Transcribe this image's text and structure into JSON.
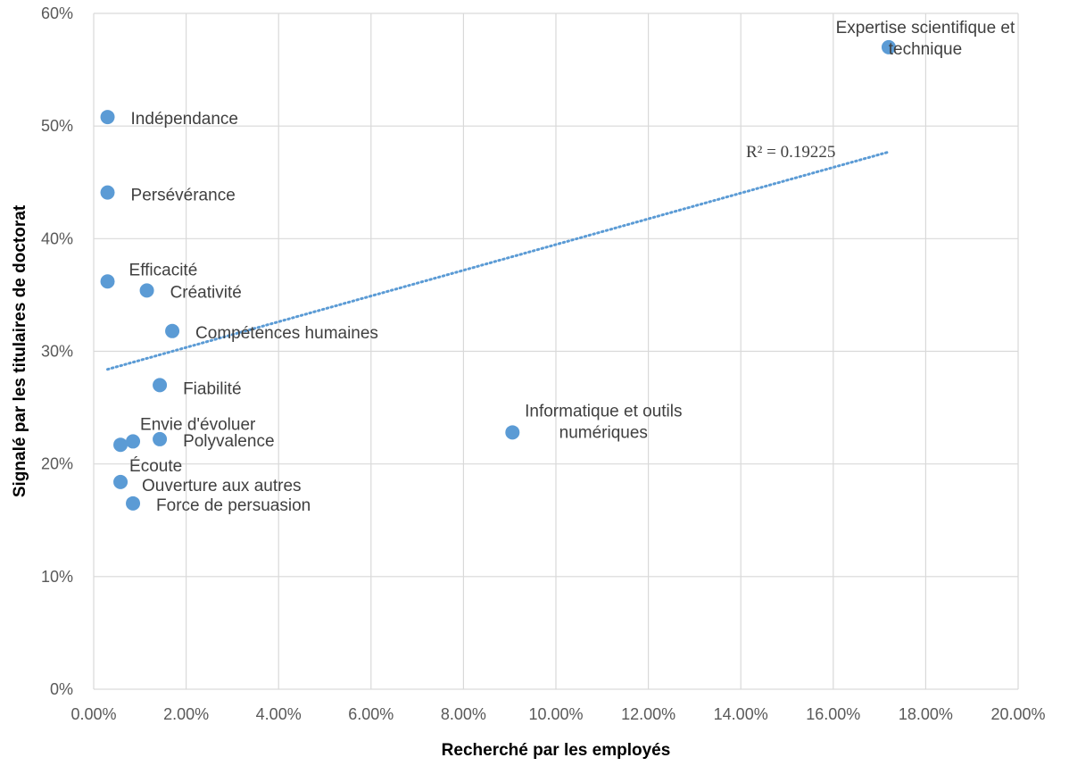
{
  "chart_data": {
    "type": "scatter",
    "title": "",
    "xlabel": "Recherché par les employés",
    "ylabel": "Signalé par les titulaires de doctorat",
    "xlim": [
      0,
      0.2
    ],
    "ylim": [
      0,
      0.6
    ],
    "x_ticks": [
      "0.00%",
      "2.00%",
      "4.00%",
      "6.00%",
      "8.00%",
      "10.00%",
      "12.00%",
      "14.00%",
      "16.00%",
      "18.00%",
      "20.00%"
    ],
    "y_ticks": [
      "0%",
      "10%",
      "20%",
      "30%",
      "40%",
      "50%",
      "60%"
    ],
    "grid": true,
    "marker_color": "#5b9bd5",
    "trendline_color": "#5b9bd5",
    "points": [
      {
        "label": [
          "Indépendance"
        ],
        "x": 0.003,
        "y": 0.508
      },
      {
        "label": [
          "Persévérance"
        ],
        "x": 0.003,
        "y": 0.441
      },
      {
        "label": [
          "Efficacité"
        ],
        "x": 0.003,
        "y": 0.362
      },
      {
        "label": [
          "Créativité"
        ],
        "x": 0.0115,
        "y": 0.354
      },
      {
        "label": [
          "Compétences humaines"
        ],
        "x": 0.017,
        "y": 0.318
      },
      {
        "label": [
          "Fiabilité"
        ],
        "x": 0.0143,
        "y": 0.27
      },
      {
        "label": [
          "Envie d'évoluer"
        ],
        "x": 0.0085,
        "y": 0.22
      },
      {
        "label": [
          "Polyvalence"
        ],
        "x": 0.0143,
        "y": 0.222
      },
      {
        "label": [
          "Écoute"
        ],
        "x": 0.0058,
        "y": 0.217
      },
      {
        "label": [
          "Ouverture aux autres"
        ],
        "x": 0.0058,
        "y": 0.184
      },
      {
        "label": [
          "Force de persuasion"
        ],
        "x": 0.0085,
        "y": 0.165
      },
      {
        "label": [
          "Informatique et outils",
          "numériques"
        ],
        "x": 0.0906,
        "y": 0.228
      },
      {
        "label": [
          "Expertise scientifique et",
          "technique"
        ],
        "x": 0.172,
        "y": 0.57
      }
    ],
    "trendline": {
      "type": "linear",
      "x": [
        0.003,
        0.172
      ],
      "y": [
        0.284,
        0.477
      ],
      "r2_label": "R² = 0.19225"
    }
  }
}
